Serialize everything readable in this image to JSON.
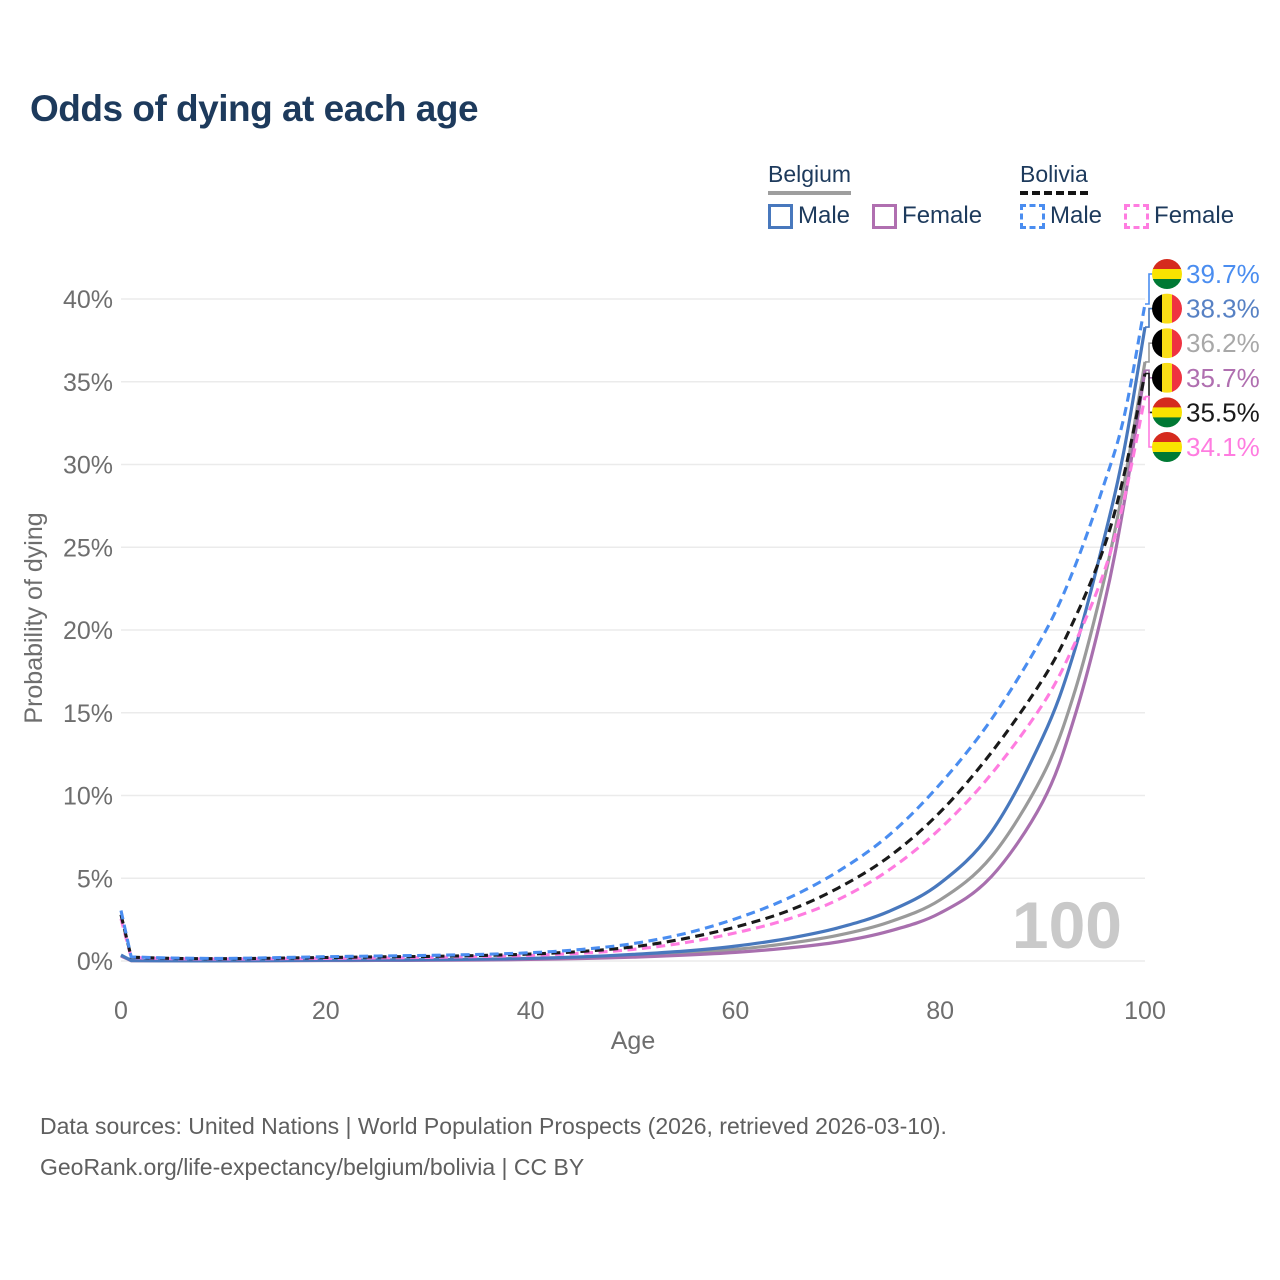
{
  "title": "Odds of dying at each age",
  "legend": {
    "groups": [
      {
        "country": "Belgium",
        "line_style": "solid",
        "line_color": "#9e9e9e",
        "items": [
          {
            "label": "Male",
            "color": "#4878bd"
          },
          {
            "label": "Female",
            "color": "#b06fb0"
          }
        ]
      },
      {
        "country": "Bolivia",
        "line_style": "dashed",
        "line_color": "#141414",
        "items": [
          {
            "label": "Male",
            "color": "#4a8df0"
          },
          {
            "label": "Female",
            "color": "#ff7ce0"
          }
        ]
      }
    ]
  },
  "flags": {
    "bolivia": {
      "orientation": "horizontal",
      "colors": [
        "#d52b1e",
        "#f9e300",
        "#007934"
      ]
    },
    "belgium": {
      "orientation": "vertical",
      "colors": [
        "#000000",
        "#f9dd16",
        "#ef3340"
      ]
    }
  },
  "chart_data": {
    "type": "line",
    "title": "Odds of dying at each age",
    "xlabel": "Age",
    "ylabel": "Probability of dying",
    "xlim": [
      0,
      100
    ],
    "ylim": [
      0,
      42
    ],
    "grid": "horizontal",
    "legend_position": "top-right",
    "watermark": "100",
    "x_ticks": {
      "values": [
        0,
        20,
        40,
        60,
        80,
        100
      ],
      "labels": [
        "0",
        "20",
        "40",
        "60",
        "80",
        "100"
      ]
    },
    "y_ticks": {
      "values": [
        0,
        5,
        10,
        15,
        20,
        25,
        30,
        35,
        40
      ],
      "labels": [
        "0%",
        "5%",
        "10%",
        "15%",
        "20%",
        "25%",
        "30%",
        "35%",
        "40%"
      ]
    },
    "x": [
      0,
      1,
      5,
      10,
      15,
      20,
      25,
      30,
      35,
      40,
      45,
      50,
      55,
      60,
      65,
      70,
      75,
      80,
      85,
      90,
      93,
      96,
      98,
      100
    ],
    "series": [
      {
        "id": "bolivia-male",
        "name": "Bolivia — Male",
        "country": "Bolivia",
        "sex": "Male",
        "flag": "bolivia",
        "line": "dashed",
        "color": "#4a8df0",
        "end_label": "39.7%",
        "label_color": "#4a8df0",
        "values": [
          3.05,
          0.25,
          0.18,
          0.16,
          0.2,
          0.26,
          0.3,
          0.34,
          0.4,
          0.5,
          0.7,
          1.05,
          1.65,
          2.55,
          3.75,
          5.4,
          7.6,
          10.7,
          14.6,
          19.6,
          23.6,
          28.8,
          33.0,
          39.7
        ]
      },
      {
        "id": "belgium-male",
        "name": "Belgium — Male",
        "country": "Belgium",
        "sex": "Male",
        "flag": "belgium",
        "line": "solid",
        "color": "#4878bd",
        "end_label": "38.3%",
        "label_color": "#5781c4",
        "values": [
          0.36,
          0.03,
          0.012,
          0.012,
          0.03,
          0.055,
          0.065,
          0.08,
          0.11,
          0.16,
          0.25,
          0.4,
          0.6,
          0.9,
          1.35,
          2.0,
          3.0,
          4.7,
          7.8,
          13.5,
          18.5,
          25.5,
          31.0,
          38.3
        ]
      },
      {
        "id": "belgium-both",
        "name": "Belgium — Both sexes",
        "country": "Belgium",
        "sex": "Both",
        "flag": "belgium",
        "line": "solid",
        "color": "#9a9a9a",
        "end_label": "36.2%",
        "label_color": "#a8a8a8",
        "values": [
          0.33,
          0.027,
          0.01,
          0.01,
          0.025,
          0.04,
          0.05,
          0.065,
          0.09,
          0.13,
          0.2,
          0.31,
          0.47,
          0.7,
          1.05,
          1.55,
          2.35,
          3.7,
          6.3,
          11.2,
          16.0,
          23.0,
          29.0,
          36.2
        ]
      },
      {
        "id": "belgium-female",
        "name": "Belgium — Female",
        "country": "Belgium",
        "sex": "Female",
        "flag": "belgium",
        "line": "solid",
        "color": "#a86fae",
        "end_label": "35.7%",
        "label_color": "#b06fb0",
        "values": [
          0.3,
          0.024,
          0.009,
          0.009,
          0.02,
          0.028,
          0.035,
          0.045,
          0.06,
          0.095,
          0.15,
          0.23,
          0.35,
          0.52,
          0.78,
          1.15,
          1.8,
          2.9,
          5.1,
          9.6,
          14.5,
          21.5,
          27.8,
          35.7
        ]
      },
      {
        "id": "bolivia-both",
        "name": "Bolivia — Both sexes",
        "country": "Bolivia",
        "sex": "Both",
        "flag": "bolivia",
        "line": "dashed",
        "color": "#1a1a1a",
        "end_label": "35.5%",
        "label_color": "#1a1a1a",
        "values": [
          2.8,
          0.23,
          0.16,
          0.14,
          0.17,
          0.21,
          0.25,
          0.28,
          0.33,
          0.42,
          0.58,
          0.85,
          1.35,
          2.05,
          3.0,
          4.4,
          6.3,
          9.0,
          12.6,
          17.0,
          20.5,
          25.0,
          29.5,
          35.5
        ]
      },
      {
        "id": "bolivia-female",
        "name": "Bolivia — Female",
        "country": "Bolivia",
        "sex": "Female",
        "flag": "bolivia",
        "line": "dashed",
        "color": "#ff7ce0",
        "end_label": "34.1%",
        "label_color": "#ff7ce0",
        "values": [
          2.55,
          0.21,
          0.14,
          0.12,
          0.14,
          0.16,
          0.19,
          0.22,
          0.27,
          0.34,
          0.47,
          0.7,
          1.1,
          1.7,
          2.5,
          3.7,
          5.5,
          8.0,
          11.3,
          15.5,
          19.0,
          23.5,
          28.0,
          34.1
        ]
      }
    ]
  },
  "footer": {
    "line1": "Data sources: United Nations | World Population Prospects (2026, retrieved 2026-03-10).",
    "line2": "GeoRank.org/life-expectancy/belgium/bolivia | CC BY"
  }
}
